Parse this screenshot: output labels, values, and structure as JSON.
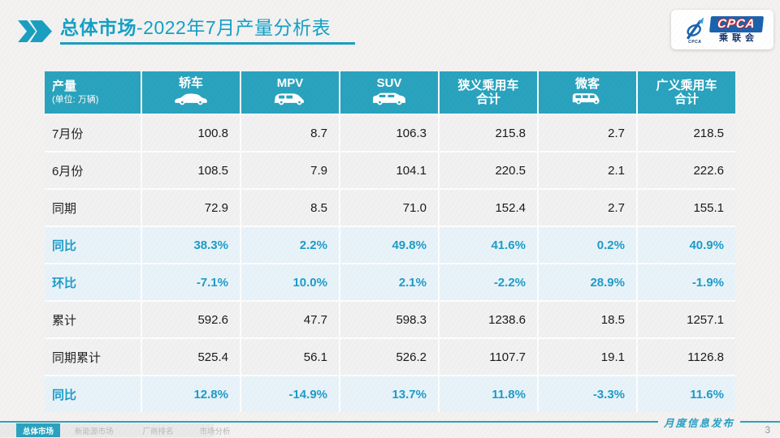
{
  "header": {
    "title_bold": "总体市场",
    "title_rest": "-2022年7月产量分析表",
    "logo": {
      "box_text": "CPCA",
      "small_text": "CPCA",
      "cn_text": "乘联会"
    }
  },
  "table": {
    "col_headers": [
      {
        "label": "产量",
        "sub": "(单位: 万辆)"
      },
      {
        "label": "轿车",
        "icon": "sedan-icon"
      },
      {
        "label": "MPV",
        "icon": "mpv-icon"
      },
      {
        "label": "SUV",
        "icon": "suv-icon"
      },
      {
        "label": "狭义乘用车",
        "sub2": "合计"
      },
      {
        "label": "微客",
        "icon": "microvan-icon"
      },
      {
        "label": "广义乘用车",
        "sub2": "合计"
      }
    ],
    "rows": [
      {
        "label": "7月份",
        "highlight": false,
        "values": [
          "100.8",
          "8.7",
          "106.3",
          "215.8",
          "2.7",
          "218.5"
        ]
      },
      {
        "label": "6月份",
        "highlight": false,
        "values": [
          "108.5",
          "7.9",
          "104.1",
          "220.5",
          "2.1",
          "222.6"
        ]
      },
      {
        "label": "同期",
        "highlight": false,
        "values": [
          "72.9",
          "8.5",
          "71.0",
          "152.4",
          "2.7",
          "155.1"
        ]
      },
      {
        "label": "同比",
        "highlight": true,
        "values": [
          "38.3%",
          "2.2%",
          "49.8%",
          "41.6%",
          "0.2%",
          "40.9%"
        ]
      },
      {
        "label": "环比",
        "highlight": true,
        "values": [
          "-7.1%",
          "10.0%",
          "2.1%",
          "-2.2%",
          "28.9%",
          "-1.9%"
        ]
      },
      {
        "label": "累计",
        "highlight": false,
        "values": [
          "592.6",
          "47.7",
          "598.3",
          "1238.6",
          "18.5",
          "1257.1"
        ]
      },
      {
        "label": "同期累计",
        "highlight": false,
        "values": [
          "525.4",
          "56.1",
          "526.2",
          "1107.7",
          "19.1",
          "1126.8"
        ]
      },
      {
        "label": "同比",
        "highlight": true,
        "values": [
          "12.8%",
          "-14.9%",
          "13.7%",
          "11.8%",
          "-3.3%",
          "11.6%"
        ]
      }
    ]
  },
  "footer": {
    "tabs": [
      {
        "label": "总体市场",
        "active": true
      },
      {
        "label": "新能源市场",
        "active": false
      },
      {
        "label": "厂商排名",
        "active": false
      },
      {
        "label": "市场分析",
        "active": false
      }
    ],
    "banner_text": "月度信息发布",
    "page_number": "3"
  },
  "watermark_text": "CPCA 乘联会",
  "colors": {
    "accent_teal": "#2aa3be",
    "title_teal": "#14a0c6",
    "percent_text": "#1e9cc8",
    "highlight_row_bg": "#e8f3f9",
    "row_bg": "#f1f1f1",
    "logo_blue": "#1b63ae"
  }
}
